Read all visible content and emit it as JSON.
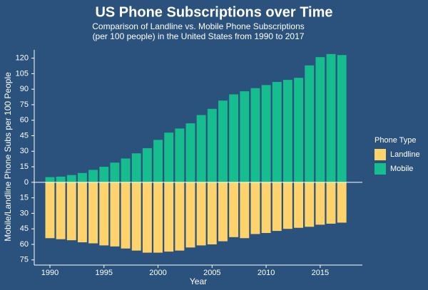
{
  "chart_data": {
    "type": "bar",
    "title": "US Phone Subscriptions over Time",
    "subtitle": [
      "Comparison of Landline vs. Mobile Phone Subscriptions",
      "(per 100 people) in the United States from 1990 to 2017"
    ],
    "x_label": "Year",
    "y_label": "Mobile/Landline Phone Subs per 100 People",
    "legend_title": "Phone Type",
    "legend_position": "right",
    "x": [
      1990,
      1991,
      1992,
      1993,
      1994,
      1995,
      1996,
      1997,
      1998,
      1999,
      2000,
      2001,
      2002,
      2003,
      2004,
      2005,
      2006,
      2007,
      2008,
      2009,
      2010,
      2011,
      2012,
      2013,
      2014,
      2015,
      2016,
      2017
    ],
    "series": [
      {
        "name": "Landline",
        "color": "#ffd36b",
        "values": [
          -54,
          -55,
          -56,
          -58,
          -59,
          -61,
          -62,
          -64,
          -66,
          -68,
          -68,
          -67,
          -66,
          -63,
          -61,
          -60,
          -57,
          -53,
          -54,
          -50,
          -49,
          -47,
          -45,
          -44,
          -43,
          -41,
          -40,
          -39
        ]
      },
      {
        "name": "Mobile",
        "color": "#16bd8e",
        "values": [
          5,
          5.5,
          7,
          9,
          12,
          15,
          19,
          23,
          28,
          33,
          41,
          48,
          52,
          57,
          65,
          71,
          79,
          85,
          88,
          91,
          94,
          97,
          99,
          101,
          113,
          121,
          124,
          123
        ]
      }
    ],
    "xlim": [
      1988.55,
      2018.9
    ],
    "xticks": [
      1990,
      1995,
      2000,
      2005,
      2010,
      2015
    ],
    "ylim": [
      -80,
      128
    ],
    "yticks": [
      {
        "value": -75,
        "label": "75"
      },
      {
        "value": -60,
        "label": "60"
      },
      {
        "value": -45,
        "label": "45"
      },
      {
        "value": -30,
        "label": "30"
      },
      {
        "value": -15,
        "label": "15"
      },
      0,
      15,
      30,
      45,
      60,
      75,
      90,
      105,
      120
    ]
  }
}
